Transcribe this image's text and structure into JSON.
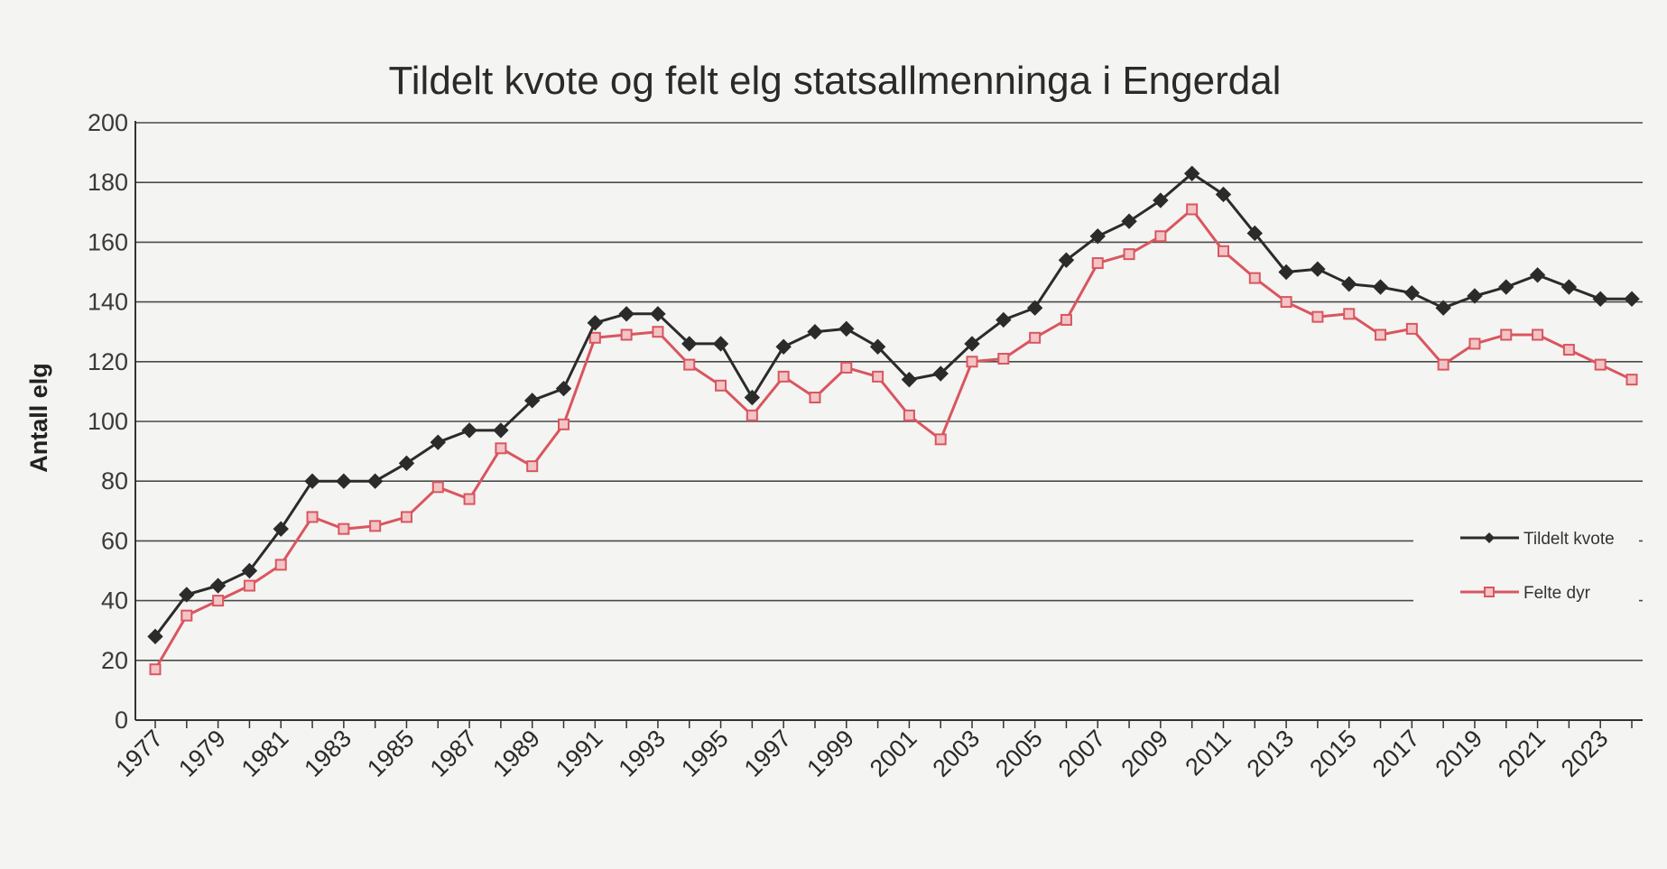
{
  "chart_data": {
    "type": "line",
    "title": "Tildelt kvote og felt elg statsallmenninga i Engerdal",
    "xlabel": "",
    "ylabel": "Antall elg",
    "ylim": [
      0,
      200
    ],
    "yticks": [
      0,
      20,
      40,
      60,
      80,
      100,
      120,
      140,
      160,
      180,
      200
    ],
    "x": [
      1977,
      1978,
      1979,
      1980,
      1981,
      1982,
      1983,
      1984,
      1985,
      1986,
      1987,
      1988,
      1989,
      1990,
      1991,
      1992,
      1993,
      1994,
      1995,
      1996,
      1997,
      1998,
      1999,
      2000,
      2001,
      2002,
      2003,
      2004,
      2005,
      2006,
      2007,
      2008,
      2009,
      2010,
      2011,
      2012,
      2013,
      2014,
      2015,
      2016,
      2017,
      2018,
      2019,
      2020,
      2021,
      2022,
      2023,
      2024
    ],
    "xtick_labels": [
      "1977",
      "1979",
      "1981",
      "1983",
      "1985",
      "1987",
      "1989",
      "1991",
      "1993",
      "1995",
      "1997",
      "1999",
      "2001",
      "2003",
      "2005",
      "2007",
      "2009",
      "2011",
      "2013",
      "2015",
      "2017",
      "2019",
      "2021",
      "2023"
    ],
    "grid": true,
    "legend_position": "right",
    "series": [
      {
        "name": "Tildelt kvote",
        "color": "#2b2b2b",
        "marker": "diamond",
        "values": [
          28,
          42,
          45,
          50,
          64,
          80,
          80,
          80,
          86,
          93,
          97,
          97,
          107,
          111,
          133,
          136,
          136,
          126,
          126,
          108,
          125,
          130,
          131,
          125,
          114,
          116,
          126,
          134,
          138,
          154,
          162,
          167,
          174,
          183,
          176,
          163,
          150,
          151,
          146,
          145,
          143,
          138,
          142,
          145,
          149,
          145,
          141,
          141
        ]
      },
      {
        "name": "Felte dyr",
        "color": "#d9565f",
        "marker": "square",
        "values": [
          17,
          35,
          40,
          45,
          52,
          68,
          64,
          65,
          68,
          78,
          74,
          91,
          85,
          99,
          128,
          129,
          130,
          119,
          112,
          102,
          115,
          108,
          118,
          115,
          102,
          94,
          120,
          121,
          128,
          134,
          153,
          156,
          162,
          171,
          157,
          148,
          140,
          135,
          136,
          129,
          131,
          119,
          126,
          129,
          129,
          124,
          119,
          114
        ]
      }
    ]
  }
}
